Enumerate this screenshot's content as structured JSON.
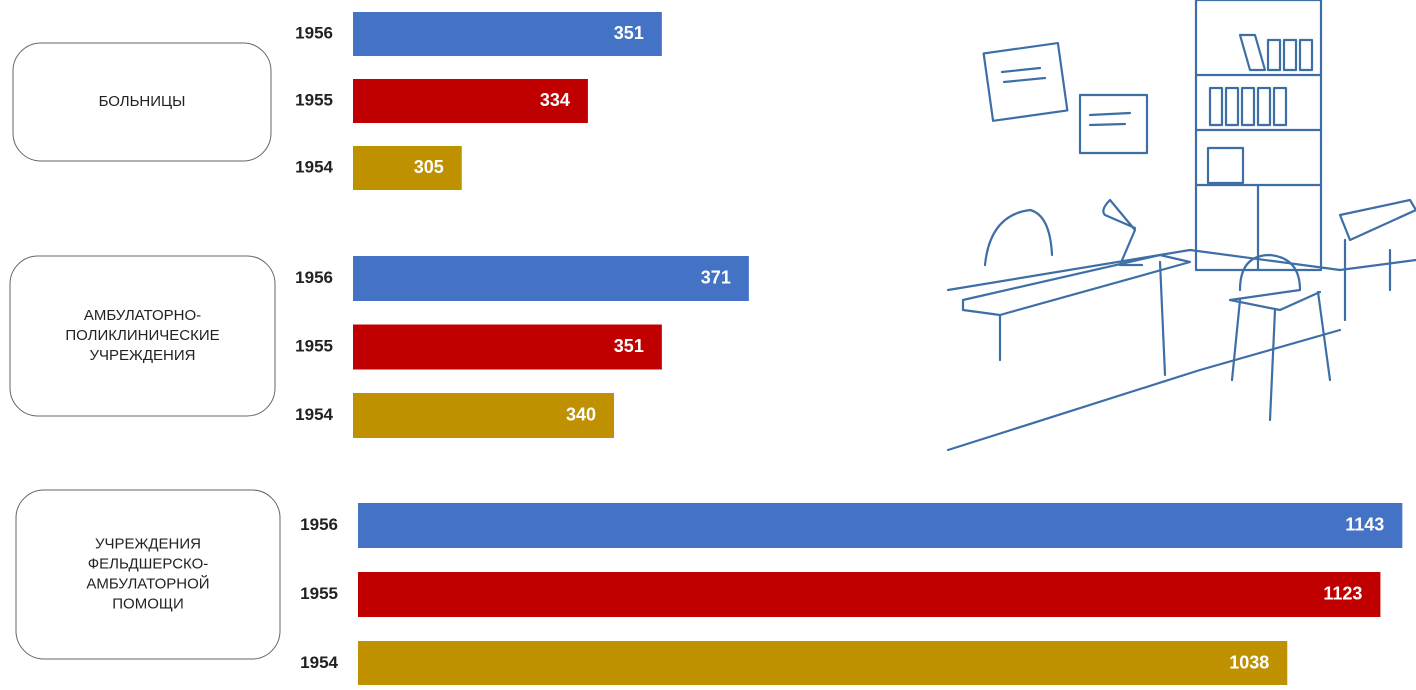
{
  "chart_data": [
    {
      "type": "hbar",
      "title": [
        "БОЛЬНИЦЫ"
      ],
      "categories": [
        "1956",
        "1955",
        "1954"
      ],
      "values": [
        351,
        334,
        305
      ],
      "colors": [
        "#4472c4",
        "#c00000",
        "#bf9000"
      ],
      "xlim": [
        280,
        500
      ]
    },
    {
      "type": "hbar",
      "title": [
        "АМБУЛАТОРНО-",
        "ПОЛИКЛИНИЧЕСКИЕ",
        "УЧРЕЖДЕНИЯ"
      ],
      "categories": [
        "1956",
        "1955",
        "1954"
      ],
      "values": [
        371,
        351,
        340
      ],
      "colors": [
        "#4472c4",
        "#c00000",
        "#bf9000"
      ],
      "xlim": [
        280,
        500
      ]
    },
    {
      "type": "hbar",
      "title": [
        "УЧРЕЖДЕНИЯ",
        "ФЕЛЬДШЕРСКО-",
        "АМБУЛАТОРНОЙ",
        "ПОМОЩИ"
      ],
      "categories": [
        "1956",
        "1955",
        "1954"
      ],
      "values": [
        1143,
        1123,
        1038
      ],
      "colors": [
        "#4472c4",
        "#c00000",
        "#bf9000"
      ],
      "xlim": [
        190,
        1150
      ]
    }
  ]
}
